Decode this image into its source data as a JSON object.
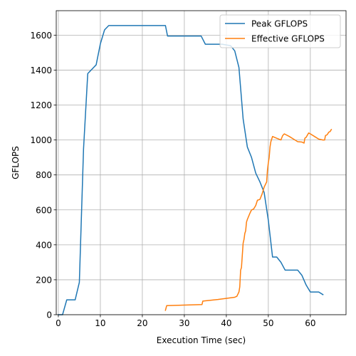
{
  "chart_data": {
    "type": "line",
    "xlabel": "Execution Time (sec)",
    "ylabel": "GFLOPS",
    "xlim": [
      -0.5,
      68.5
    ],
    "ylim": [
      0,
      1740
    ],
    "xticks": [
      0,
      10,
      20,
      30,
      40,
      50,
      60
    ],
    "yticks": [
      0,
      200,
      400,
      600,
      800,
      1000,
      1200,
      1400,
      1600
    ],
    "grid": true,
    "legend": "top-right",
    "series": [
      {
        "name": "Peak GFLOPS",
        "color": "#1f77b4",
        "points": [
          [
            0,
            0
          ],
          [
            1,
            0
          ],
          [
            2,
            85
          ],
          [
            4,
            85
          ],
          [
            5,
            185
          ],
          [
            6,
            950
          ],
          [
            7,
            1380
          ],
          [
            9,
            1430
          ],
          [
            10,
            1550
          ],
          [
            11,
            1630
          ],
          [
            12,
            1655
          ],
          [
            25.5,
            1655
          ],
          [
            26,
            1595
          ],
          [
            34,
            1595
          ],
          [
            35,
            1548
          ],
          [
            39,
            1548
          ],
          [
            41,
            1540
          ],
          [
            42,
            1510
          ],
          [
            43,
            1415
          ],
          [
            44,
            1120
          ],
          [
            45,
            960
          ],
          [
            46,
            900
          ],
          [
            47,
            810
          ],
          [
            48,
            760
          ],
          [
            49,
            700
          ],
          [
            50,
            540
          ],
          [
            51,
            330
          ],
          [
            52,
            330
          ],
          [
            53,
            300
          ],
          [
            54,
            255
          ],
          [
            55,
            255
          ],
          [
            57,
            255
          ],
          [
            58,
            225
          ],
          [
            59,
            170
          ],
          [
            60,
            130
          ],
          [
            62,
            130
          ],
          [
            63,
            115
          ]
        ]
      },
      {
        "name": "Effective GFLOPS",
        "color": "#ff7f0e",
        "points": [
          [
            25.5,
            25
          ],
          [
            25.8,
            52
          ],
          [
            34.2,
            58
          ],
          [
            34.4,
            78
          ],
          [
            38,
            87
          ],
          [
            42,
            100
          ],
          [
            42.5,
            105
          ],
          [
            43,
            130
          ],
          [
            43.2,
            160
          ],
          [
            43.4,
            255
          ],
          [
            43.6,
            270
          ],
          [
            43.8,
            340
          ],
          [
            44,
            410
          ],
          [
            44.2,
            430
          ],
          [
            44.4,
            465
          ],
          [
            44.6,
            480
          ],
          [
            44.8,
            530
          ],
          [
            45,
            545
          ],
          [
            45.6,
            580
          ],
          [
            46,
            600
          ],
          [
            46.5,
            605
          ],
          [
            47,
            625
          ],
          [
            47.4,
            655
          ],
          [
            48,
            660
          ],
          [
            48.5,
            690
          ],
          [
            49,
            730
          ],
          [
            49.6,
            760
          ],
          [
            49.8,
            830
          ],
          [
            50,
            870
          ],
          [
            50.2,
            900
          ],
          [
            50.4,
            960
          ],
          [
            50.6,
            990
          ],
          [
            51,
            1020
          ],
          [
            52,
            1010
          ],
          [
            53,
            1000
          ],
          [
            53.4,
            1025
          ],
          [
            53.8,
            1035
          ],
          [
            55,
            1020
          ],
          [
            56,
            1005
          ],
          [
            57,
            990
          ],
          [
            58,
            988
          ],
          [
            58.5,
            982
          ],
          [
            58.7,
            1010
          ],
          [
            59,
            1015
          ],
          [
            59.6,
            1040
          ],
          [
            60,
            1035
          ],
          [
            61,
            1020
          ],
          [
            62,
            1005
          ],
          [
            63,
            1000
          ],
          [
            63.4,
            1000
          ],
          [
            63.6,
            1025
          ],
          [
            64,
            1030
          ],
          [
            64.4,
            1045
          ],
          [
            64.7,
            1048
          ],
          [
            65,
            1060
          ]
        ]
      }
    ]
  }
}
